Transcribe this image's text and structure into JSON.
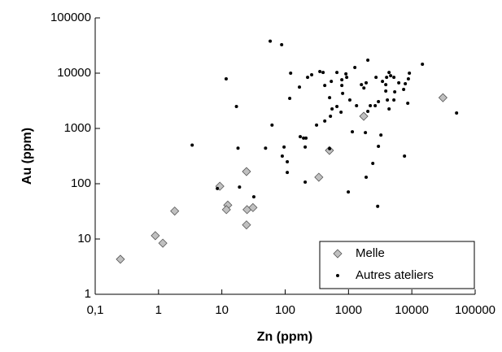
{
  "chart_data": {
    "type": "scatter",
    "xlabel": "Zn (ppm)",
    "ylabel": "Au (ppm)",
    "xscale": "log",
    "yscale": "log",
    "xlim": [
      0.1,
      100000
    ],
    "ylim": [
      1,
      100000
    ],
    "xticks": [
      {
        "value": 0.1,
        "label": "0,1"
      },
      1,
      10,
      100,
      1000,
      10000,
      100000
    ],
    "yticks": [
      1,
      10,
      100,
      1000,
      10000,
      100000
    ],
    "legend": "lower right",
    "series": [
      {
        "name": "Melle",
        "color": "#c0c0c0",
        "marker": "diamond",
        "x": [
          0.25,
          0.89,
          1.17,
          1.8,
          9.3,
          12.4,
          11.8,
          24.5,
          25,
          31,
          24.5,
          340,
          500,
          1740,
          31000
        ],
        "values": [
          4.3,
          11.5,
          8.4,
          32,
          90,
          41,
          34,
          166,
          34,
          37,
          18,
          131,
          400,
          1660,
          3600
        ]
      },
      {
        "name": "Autres ateliers",
        "color": "#000000",
        "marker": "dot",
        "x": [
          58,
          88,
          11.7,
          17,
          3.4,
          18,
          8.5,
          32,
          19,
          49,
          62,
          90,
          96,
          108,
          108,
          118,
          122,
          173,
          195,
          213,
          207,
          207,
          168,
          226,
          262,
          313,
          353,
          422,
          397,
          422,
          503,
          519,
          503,
          535,
          550,
          656,
          656,
          785,
          808,
          762,
          785,
          910,
          937,
          993,
          1050,
          1150,
          1260,
          1340,
          1600,
          1750,
          1850,
          1900,
          1900,
          2020,
          2020,
          2210,
          2420,
          2640,
          2720,
          2890,
          2970,
          2970,
          3250,
          3440,
          3880,
          3880,
          4000,
          4110,
          4370,
          4370,
          4630,
          5210,
          5370,
          5210,
          6220,
          7430,
          7890,
          8630,
          8820,
          9150,
          14700,
          7660,
          50900
        ],
        "values": [
          38000,
          32700,
          7900,
          2500,
          500,
          440,
          82,
          58,
          87,
          440,
          1150,
          316,
          460,
          250,
          160,
          3500,
          10000,
          710,
          670,
          670,
          107,
          460,
          5600,
          8400,
          9350,
          1150,
          10700,
          6000,
          10300,
          1360,
          430,
          1660,
          3600,
          7100,
          2250,
          10300,
          2500,
          6000,
          4300,
          1970,
          7600,
          9700,
          8400,
          71,
          3270,
          870,
          12700,
          2580,
          6200,
          5400,
          840,
          6700,
          131,
          17200,
          2040,
          2580,
          233,
          2580,
          8400,
          39,
          3060,
          475,
          760,
          7100,
          6200,
          4750,
          8400,
          3270,
          10300,
          2250,
          9000,
          8400,
          4590,
          3270,
          6700,
          5080,
          6440,
          2860,
          7900,
          10000,
          14500,
          316,
          1900
        ]
      }
    ]
  }
}
